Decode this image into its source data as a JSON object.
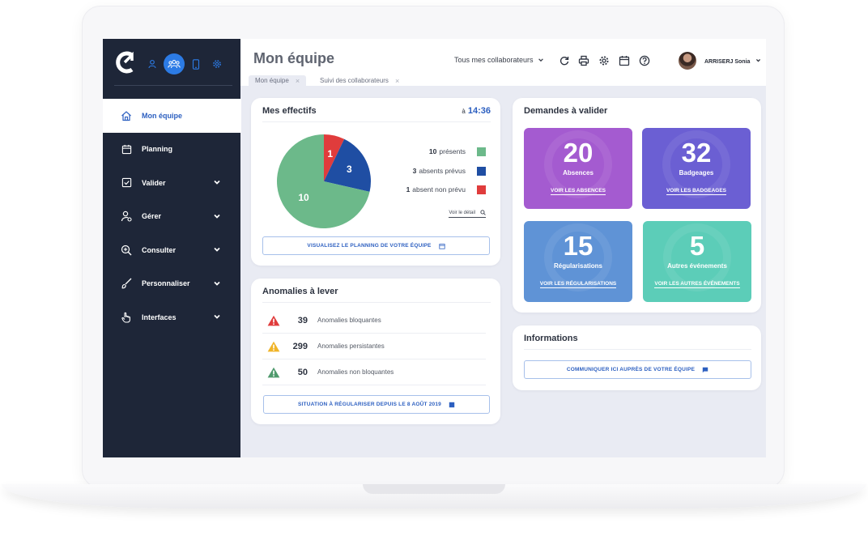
{
  "app": {
    "page_title": "Mon équipe"
  },
  "header": {
    "filter_label": "Tous mes collaborateurs",
    "user_name": "ARRISERJ Sonia",
    "tabs": [
      {
        "label": "Mon équipe"
      },
      {
        "label": "Suivi des collaborateurs"
      }
    ]
  },
  "sidebar": {
    "items": [
      {
        "label": "Mon équipe",
        "icon": "home-icon"
      },
      {
        "label": "Planning",
        "icon": "calendar-icon"
      },
      {
        "label": "Valider",
        "icon": "checkbox-icon"
      },
      {
        "label": "Gérer",
        "icon": "user-gear-icon"
      },
      {
        "label": "Consulter",
        "icon": "search-plus-icon"
      },
      {
        "label": "Personnaliser",
        "icon": "brush-icon"
      },
      {
        "label": "Interfaces",
        "icon": "hand-pointer-icon"
      }
    ]
  },
  "effectifs": {
    "title": "Mes effectifs",
    "time_prefix": "à",
    "time": "14:36",
    "legend": [
      {
        "count": "10",
        "label": "présents",
        "color": "#6cb98a"
      },
      {
        "count": "3",
        "label": "absents prévus",
        "color": "#1f4ea3"
      },
      {
        "count": "1",
        "label": "absent non prévu",
        "color": "#e03c3c"
      }
    ],
    "detail_link": "Voir le détail",
    "planning_button": "VISUALISEZ LE PLANNING DE VOTRE ÉQUIPE",
    "chart_data": {
      "type": "pie",
      "categories": [
        "présents",
        "absents prévus",
        "absent non prévu"
      ],
      "values": [
        10,
        3,
        1
      ],
      "labels": [
        "10",
        "3",
        "1"
      ],
      "colors": [
        "#6cb98a",
        "#1f4ea3",
        "#e03c3c"
      ]
    }
  },
  "anomalies": {
    "title": "Anomalies à lever",
    "rows": [
      {
        "count": "39",
        "label": "Anomalies bloquantes",
        "color": "#e03c3c"
      },
      {
        "count": "299",
        "label": "Anomalies persistantes",
        "color": "#f0b429"
      },
      {
        "count": "50",
        "label": "Anomalies non bloquantes",
        "color": "#4f9a6d"
      }
    ],
    "button": "SITUATION À RÉGULARISER DEPUIS LE 8 AOÛT 2019"
  },
  "demandes": {
    "title": "Demandes à valider",
    "tiles": [
      {
        "value": "20",
        "label": "Absences",
        "link": "VOIR LES ABSENCES",
        "color": "#a45bd0"
      },
      {
        "value": "32",
        "label": "Badgeages",
        "link": "VOIR LES BADGEAGES",
        "color": "#6b5fd3"
      },
      {
        "value": "15",
        "label": "Régularisations",
        "link": "VOIR LES RÉGULARISATIONS",
        "color": "#5f93d6"
      },
      {
        "value": "5",
        "label": "Autres événements",
        "link": "VOIR LES AUTRES ÉVÉNEMENTS",
        "color": "#5ccdb8"
      }
    ]
  },
  "informations": {
    "title": "Informations",
    "button": "COMMUNIQUER ICI AUPRÈS DE VOTRE ÉQUIPE"
  }
}
